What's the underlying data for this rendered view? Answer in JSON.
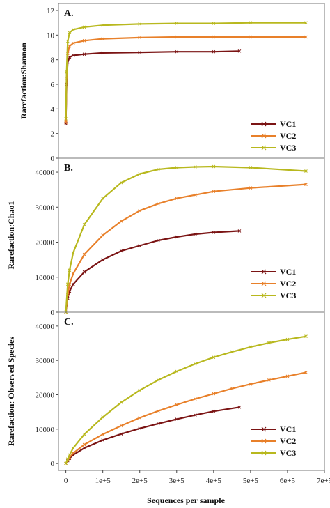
{
  "colors": {
    "VC1": "#7b1414",
    "VC2": "#e8802a",
    "VC3": "#b8b81e"
  },
  "x_axis": {
    "label": "Sequences per sample",
    "ticks": [
      0,
      100000,
      200000,
      300000,
      400000,
      500000,
      600000,
      700000
    ],
    "tick_labels": [
      "0",
      "1e+5",
      "2e+5",
      "3e+5",
      "4e+5",
      "5e+5",
      "6e+5",
      "7e+5"
    ],
    "range": [
      -20000,
      700000
    ]
  },
  "chart_data": [
    {
      "type": "line",
      "panel_label": "A.",
      "ylabel": "Rarefaction:Shannon",
      "ylim": [
        0,
        12
      ],
      "yticks": [
        0,
        2,
        4,
        6,
        8,
        10,
        12
      ],
      "legend_position": "bottom-right",
      "series": [
        {
          "name": "VC1",
          "x": [
            0,
            2000,
            5000,
            10000,
            20000,
            50000,
            100000,
            200000,
            300000,
            400000,
            470000
          ],
          "y": [
            2.8,
            6.0,
            7.8,
            8.2,
            8.35,
            8.45,
            8.55,
            8.6,
            8.65,
            8.65,
            8.7
          ]
        },
        {
          "name": "VC2",
          "x": [
            0,
            2000,
            5000,
            10000,
            20000,
            50000,
            100000,
            200000,
            300000,
            400000,
            500000,
            650000
          ],
          "y": [
            2.9,
            6.5,
            8.5,
            9.1,
            9.35,
            9.55,
            9.7,
            9.8,
            9.85,
            9.85,
            9.85,
            9.85
          ]
        },
        {
          "name": "VC3",
          "x": [
            0,
            2000,
            5000,
            10000,
            20000,
            50000,
            100000,
            200000,
            300000,
            400000,
            500000,
            650000
          ],
          "y": [
            3.2,
            7.0,
            9.5,
            10.2,
            10.45,
            10.65,
            10.8,
            10.9,
            10.95,
            10.95,
            11.0,
            11.0
          ]
        }
      ]
    },
    {
      "type": "line",
      "panel_label": "B.",
      "ylabel": "Rarefaction:Chao1",
      "ylim": [
        0,
        42000
      ],
      "yticks": [
        0,
        10000,
        20000,
        30000,
        40000
      ],
      "legend_position": "bottom-right",
      "series": [
        {
          "name": "VC1",
          "x": [
            0,
            5000,
            10000,
            20000,
            50000,
            100000,
            150000,
            200000,
            250000,
            300000,
            350000,
            400000,
            470000
          ],
          "y": [
            0,
            4000,
            6000,
            8000,
            11500,
            15000,
            17500,
            19000,
            20500,
            21500,
            22300,
            22800,
            23200
          ]
        },
        {
          "name": "VC2",
          "x": [
            0,
            5000,
            10000,
            20000,
            50000,
            100000,
            150000,
            200000,
            250000,
            300000,
            350000,
            400000,
            500000,
            650000
          ],
          "y": [
            0,
            5000,
            8000,
            11000,
            16500,
            22000,
            26000,
            29000,
            31000,
            32500,
            33500,
            34500,
            35500,
            36500
          ]
        },
        {
          "name": "VC3",
          "x": [
            0,
            5000,
            10000,
            20000,
            50000,
            100000,
            150000,
            200000,
            250000,
            300000,
            350000,
            400000,
            500000,
            650000
          ],
          "y": [
            0,
            8000,
            12000,
            17000,
            25000,
            32500,
            37000,
            39500,
            40800,
            41300,
            41500,
            41600,
            41300,
            40300
          ]
        }
      ]
    },
    {
      "type": "line",
      "panel_label": "C.",
      "ylabel": "Rarefaction: Observed Species",
      "ylim": [
        -2000,
        42000
      ],
      "yticks": [
        0,
        10000,
        20000,
        30000,
        40000
      ],
      "legend_position": "bottom-right",
      "series": [
        {
          "name": "VC1",
          "x": [
            0,
            5000,
            10000,
            20000,
            50000,
            100000,
            150000,
            200000,
            250000,
            300000,
            350000,
            400000,
            470000
          ],
          "y": [
            0,
            800,
            1500,
            2500,
            4500,
            6800,
            8600,
            10200,
            11600,
            12900,
            14100,
            15200,
            16400
          ]
        },
        {
          "name": "VC2",
          "x": [
            0,
            5000,
            10000,
            20000,
            50000,
            100000,
            150000,
            200000,
            250000,
            300000,
            350000,
            400000,
            450000,
            500000,
            550000,
            600000,
            650000
          ],
          "y": [
            0,
            1000,
            1800,
            3000,
            5500,
            8500,
            11000,
            13300,
            15300,
            17100,
            18800,
            20300,
            21800,
            23100,
            24300,
            25400,
            26500
          ]
        },
        {
          "name": "VC3",
          "x": [
            0,
            5000,
            10000,
            20000,
            50000,
            100000,
            150000,
            200000,
            250000,
            300000,
            350000,
            400000,
            450000,
            500000,
            550000,
            600000,
            650000
          ],
          "y": [
            0,
            1300,
            2500,
            4500,
            8500,
            13500,
            17800,
            21300,
            24300,
            26800,
            29000,
            30900,
            32500,
            33900,
            35100,
            36100,
            37000
          ]
        }
      ]
    }
  ]
}
